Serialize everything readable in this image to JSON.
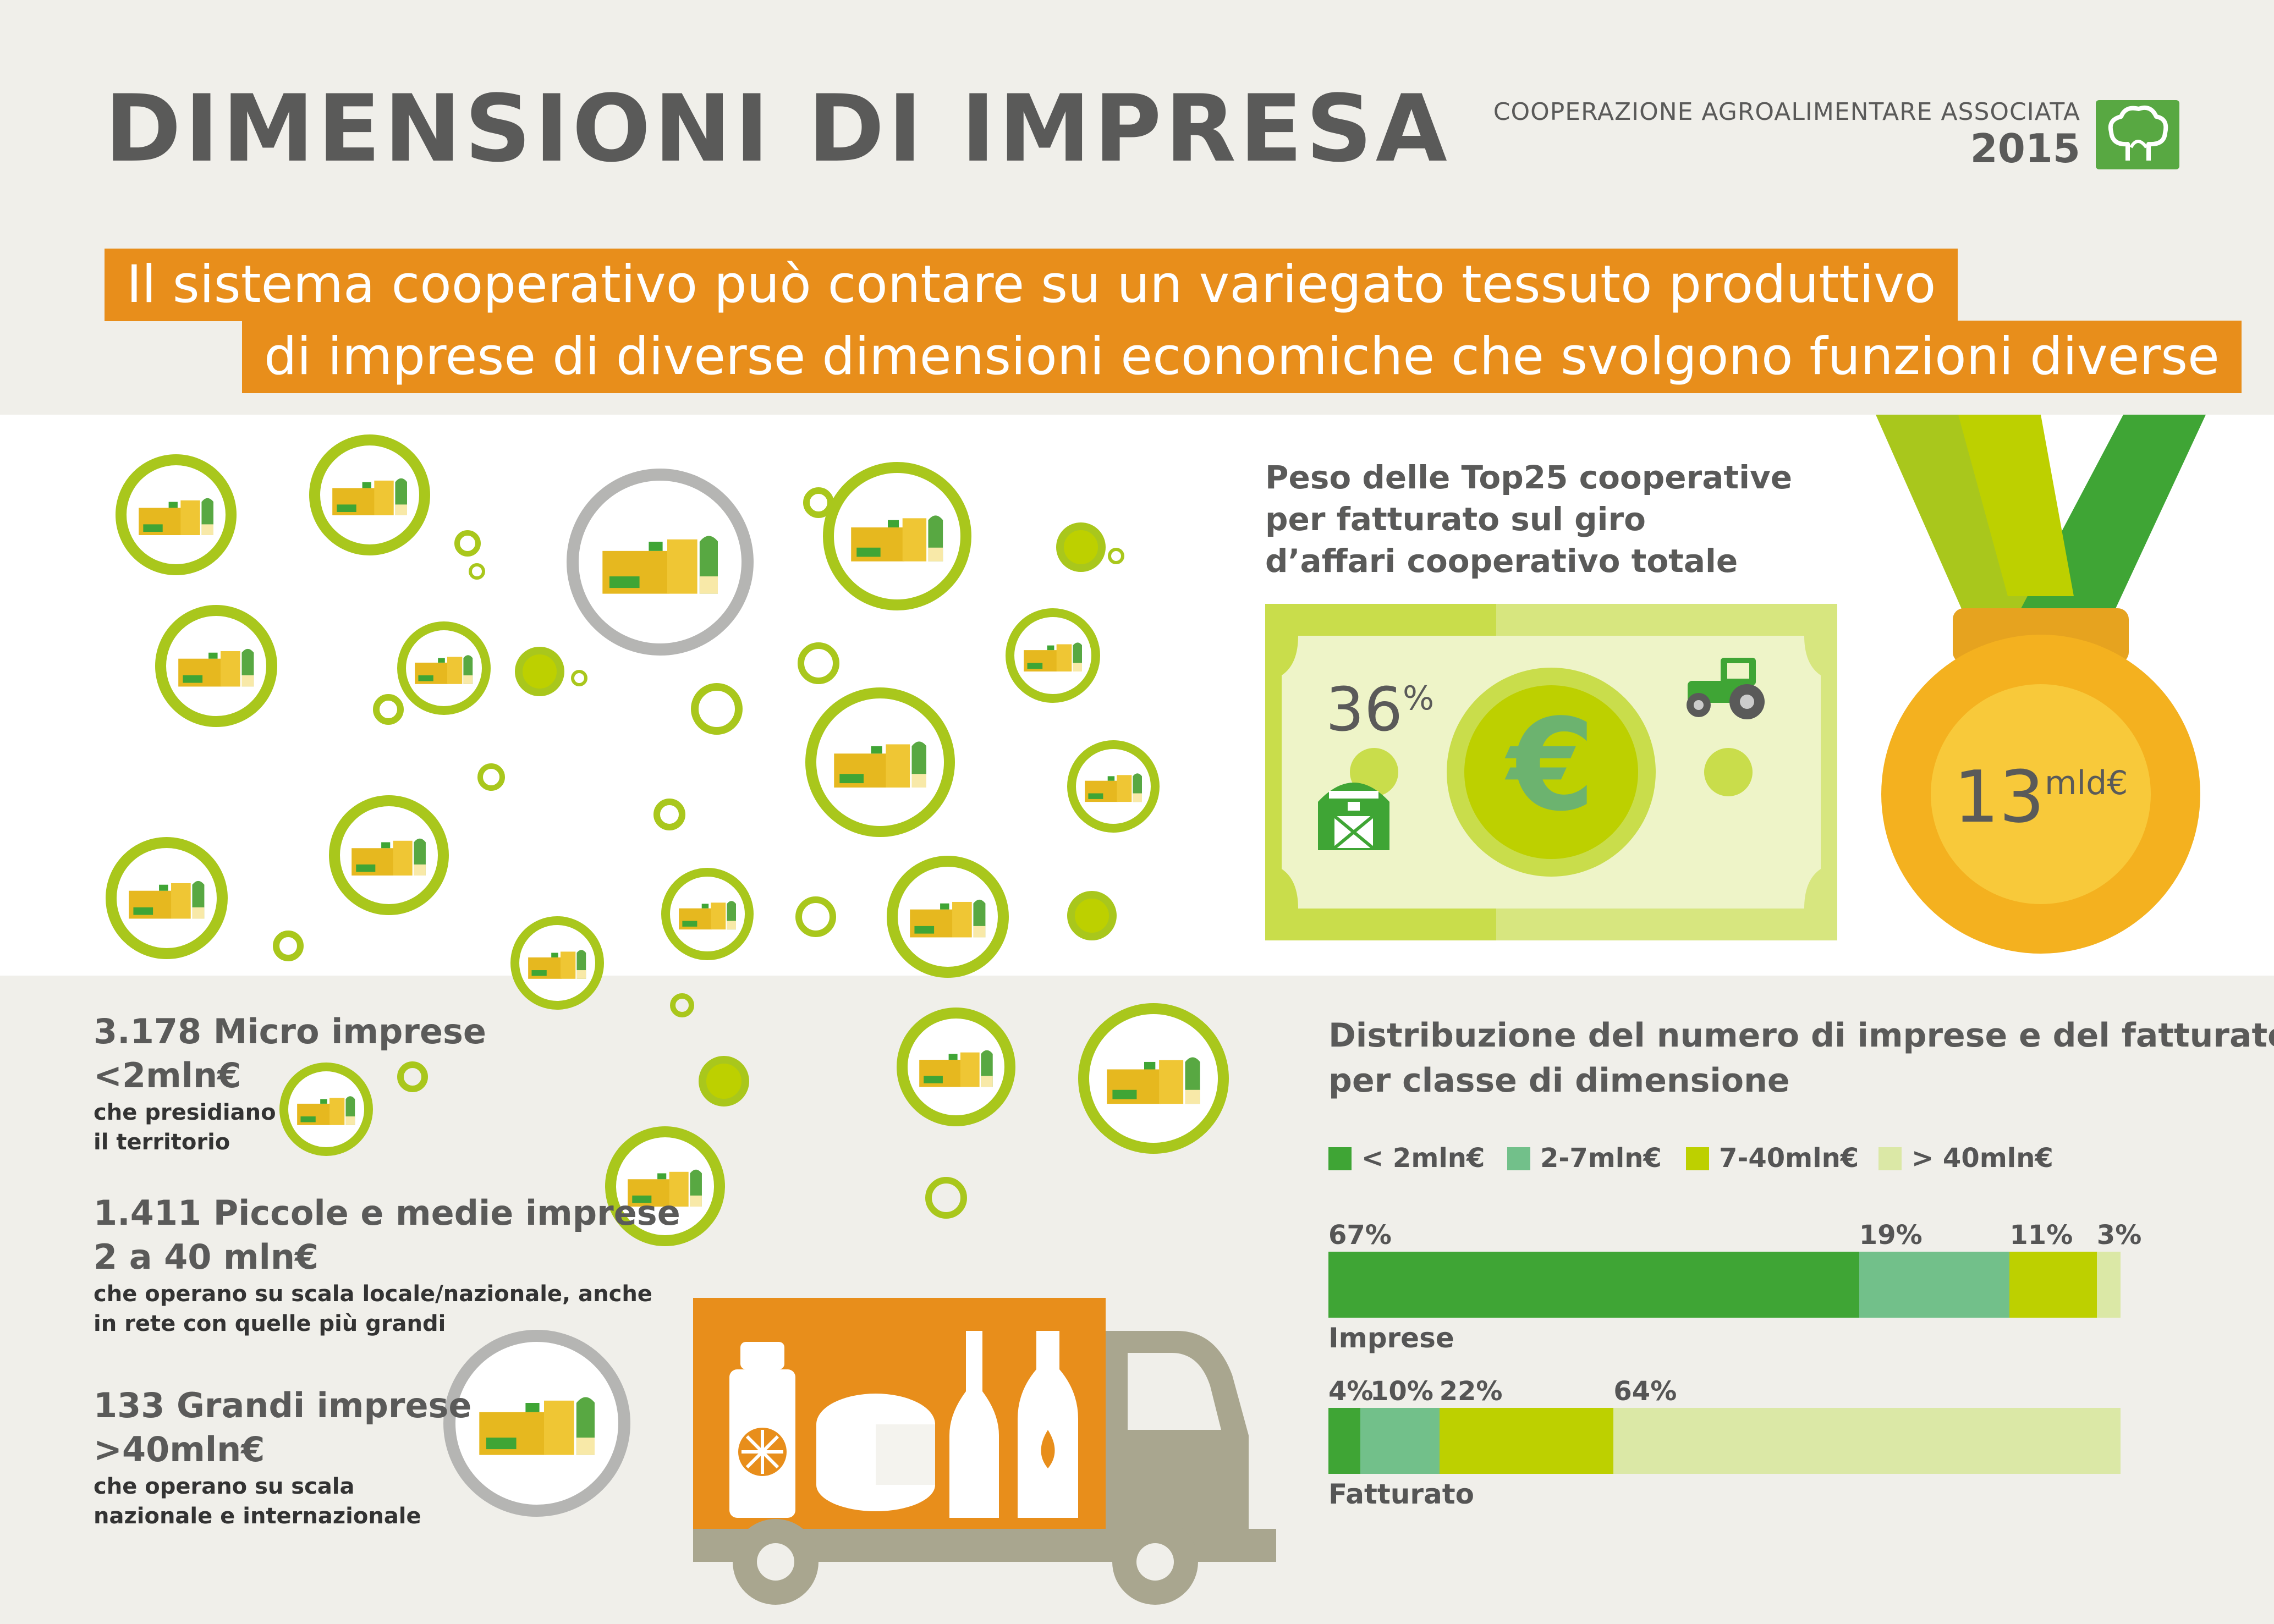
{
  "header": {
    "title": "DIMENSIONI DI IMPRESA",
    "organization": "COOPERAZIONE AGROALIMENTARE ASSOCIATA",
    "year": "2015"
  },
  "banner": {
    "line1": "Il sistema cooperativo può contare su un variegato tessuto produttivo",
    "line2": "di imprese di diverse dimensioni economiche che svolgono funzioni diverse"
  },
  "top25": {
    "line1": "Peso delle Top25 cooperative",
    "line2": "per fatturato sul giro",
    "line3": "d’affari cooperativo totale",
    "percent": "36",
    "percent_sign": "%",
    "euro_symbol": "€",
    "medal_value": "13",
    "medal_unit": "mld€"
  },
  "categories": {
    "micro": {
      "headline": "3.178 Micro imprese",
      "range": "<2mln€",
      "desc1": "che presidiano",
      "desc2": "il territorio"
    },
    "pmi": {
      "headline": "1.411 Piccole e medie imprese",
      "range": "2 a 40 mln€",
      "desc1": "che operano su scala locale/nazionale, anche",
      "desc2": "in rete con quelle più grandi"
    },
    "grandi": {
      "headline": "133 Grandi imprese",
      "range": ">40mln€",
      "desc1": "che operano su scala",
      "desc2": "nazionale e internazionale"
    }
  },
  "chart_data": {
    "type": "bar",
    "stacked": true,
    "orientation": "horizontal",
    "title": "Distribuzione del numero di imprese e del fatturato per classe di dimensione",
    "title_line1": "Distribuzione del numero di imprese e del fatturato",
    "title_line2": "per classe di dimensione",
    "legend_position": "top",
    "legend": [
      "< 2mln€",
      "2-7mln€",
      "7-40mln€",
      "> 40mln€"
    ],
    "colors": [
      "#3fa535",
      "#72c08a",
      "#bdd000",
      "#dbe8a6"
    ],
    "categories": [
      "Imprese",
      "Fatturato"
    ],
    "values": [
      [
        67,
        19,
        11,
        3
      ],
      [
        4,
        10,
        22,
        64
      ]
    ],
    "labels": [
      [
        "67%",
        "19%",
        "11%",
        "3%"
      ],
      [
        "4%",
        "10%",
        "22%",
        "64%"
      ]
    ]
  },
  "colors": {
    "orange": "#e88e1b",
    "lime": "#a9c71c",
    "green": "#3fa535",
    "gray_text": "#5a5a59",
    "truck_gray": "#a9a68f"
  },
  "icons": [
    "tree-logo-icon",
    "factory-icon",
    "tractor-icon",
    "barn-icon",
    "euro-icon",
    "medal-icon",
    "truck-icon",
    "juice-carton-icon",
    "cheese-icon",
    "bottle-icon",
    "oil-bottle-icon"
  ]
}
